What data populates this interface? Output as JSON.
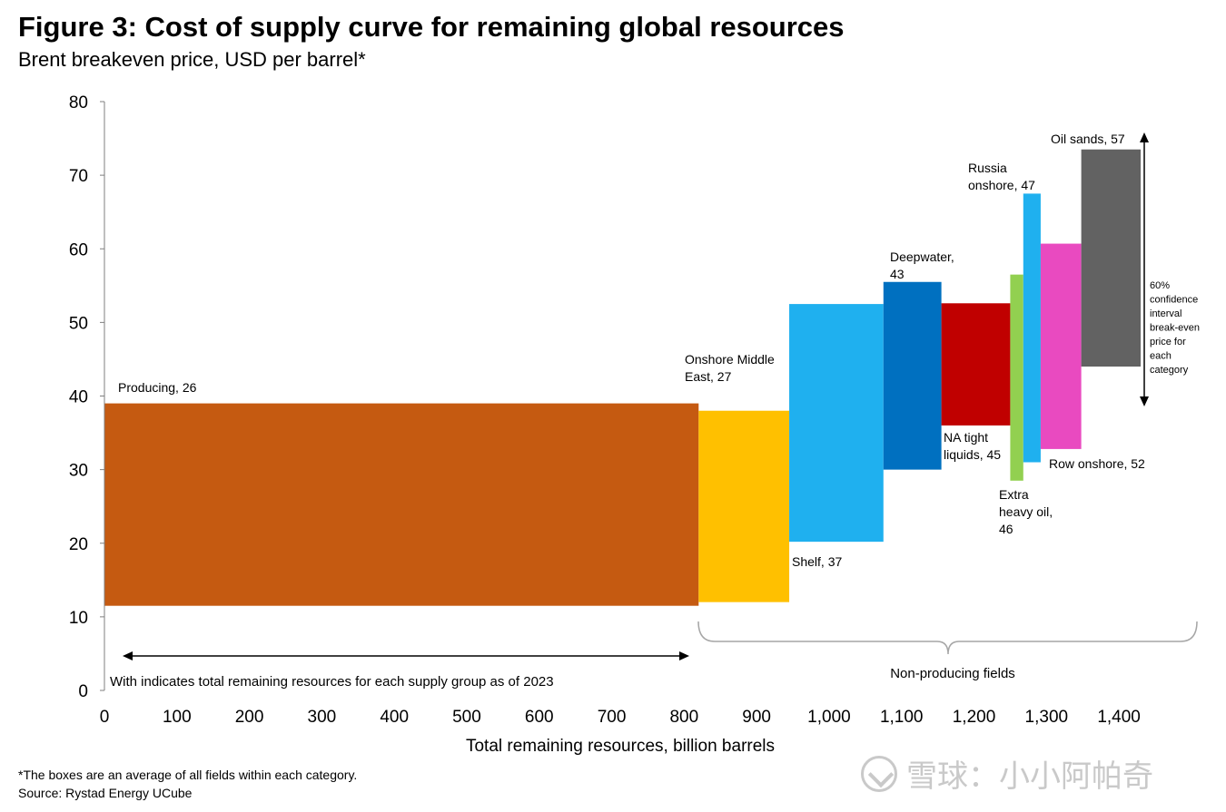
{
  "title": "Figure 3: Cost of supply curve for remaining global resources",
  "subtitle": "Brent breakeven price, USD per barrel*",
  "footnote": "*The boxes are an average of all fields within each category.",
  "source": "Source: Rystad Energy UCube",
  "watermark": "雪球：小小阿帕奇",
  "chart_data": {
    "type": "bar",
    "title": "Figure 3: Cost of supply curve for remaining global resources",
    "xlabel": "Total remaining resources, billion barrels",
    "ylabel": "Brent breakeven price, USD per barrel*",
    "xlim": [
      0,
      1450
    ],
    "ylim": [
      0,
      80
    ],
    "x_ticks": [
      0,
      100,
      200,
      300,
      400,
      500,
      600,
      700,
      800,
      900,
      1000,
      1100,
      1200,
      1300,
      1400
    ],
    "x_tick_labels": [
      "0",
      "100",
      "200",
      "300",
      "400",
      "500",
      "600",
      "700",
      "800",
      "900",
      "1,000",
      "1,100",
      "1,200",
      "1,300",
      "1,400"
    ],
    "y_ticks": [
      0,
      10,
      20,
      30,
      40,
      50,
      60,
      70,
      80
    ],
    "y_tick_labels": [
      "0",
      "10",
      "20",
      "30",
      "40",
      "50",
      "60",
      "70",
      "80"
    ],
    "series": [
      {
        "name": "Producing",
        "label": "Producing, 26",
        "breakeven": 26,
        "x_start": 0,
        "x_end": 820,
        "low": 11.5,
        "high": 39,
        "color": "#C55A11"
      },
      {
        "name": "Onshore Middle East",
        "label": "Onshore Middle East, 27",
        "breakeven": 27,
        "x_start": 820,
        "x_end": 945,
        "low": 12,
        "high": 38,
        "color": "#FFC000"
      },
      {
        "name": "Shelf",
        "label": "Shelf, 37",
        "breakeven": 37,
        "x_start": 945,
        "x_end": 1075,
        "low": 20.2,
        "high": 52.5,
        "color": "#1FB0EF"
      },
      {
        "name": "Deepwater",
        "label": "Deepwater, 43",
        "breakeven": 43,
        "x_start": 1075,
        "x_end": 1155,
        "low": 30,
        "high": 55.5,
        "color": "#0070C0"
      },
      {
        "name": "NA tight liquids",
        "label": "NA tight liquids, 45",
        "breakeven": 45,
        "x_start": 1155,
        "x_end": 1250,
        "low": 36,
        "high": 52.6,
        "color": "#C00000"
      },
      {
        "name": "Extra heavy oil",
        "label": "Extra heavy oil, 46",
        "breakeven": 46,
        "x_start": 1250,
        "x_end": 1268,
        "low": 28.5,
        "high": 56.5,
        "color": "#92D050"
      },
      {
        "name": "Russia onshore",
        "label": "Russia onshore, 47",
        "breakeven": 47,
        "x_start": 1268,
        "x_end": 1292,
        "low": 31,
        "high": 67.5,
        "color": "#1FB0EF"
      },
      {
        "name": "Row onshore",
        "label": "Row onshore, 52",
        "breakeven": 52,
        "x_start": 1292,
        "x_end": 1348,
        "low": 32.8,
        "high": 60.7,
        "color": "#E94AC0"
      },
      {
        "name": "Oil sands",
        "label": "Oil sands, 57",
        "breakeven": 57,
        "x_start": 1348,
        "x_end": 1430,
        "low": 44,
        "high": 73.5,
        "color": "#626262"
      }
    ],
    "annotations": {
      "producing_width": "With indicates total remaining resources for each supply group as of 2023",
      "non_producing": "Non-producing fields",
      "confidence": [
        "60%",
        "confidence",
        "interval",
        "break-even",
        "price for",
        "each",
        "category"
      ]
    },
    "category_labels": {
      "producing": [
        "Producing, 26"
      ],
      "onshore_me": [
        "Onshore Middle",
        "East, 27"
      ],
      "shelf": [
        "Shelf, 37"
      ],
      "deepwater": [
        "Deepwater,",
        "43"
      ],
      "na_tight": [
        "NA tight",
        "liquids, 45"
      ],
      "extra_heavy": [
        "Extra",
        "heavy oil,",
        "46"
      ],
      "russia": [
        "Russia",
        "onshore, 47"
      ],
      "row": [
        "Row onshore, 52"
      ],
      "oil_sands": [
        "Oil sands, 57"
      ]
    }
  }
}
